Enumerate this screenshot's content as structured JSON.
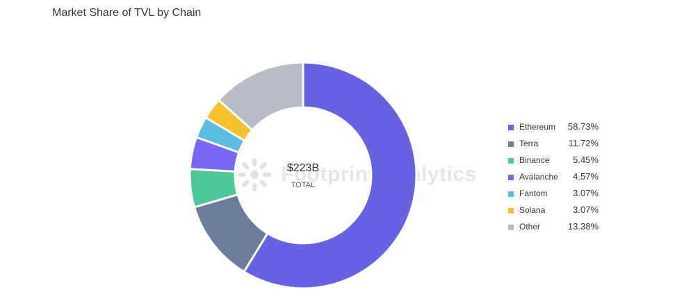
{
  "chart_data": {
    "type": "pie",
    "title": "Market Share of TVL by Chain",
    "center_value": "$223B",
    "center_label": "TOTAL",
    "watermark": "Footprint Analytics",
    "legend_position": "right",
    "categories": [
      "Ethereum",
      "Terra",
      "Binance",
      "Avalanche",
      "Fantom",
      "Solana",
      "Other"
    ],
    "values": [
      58.73,
      11.72,
      5.45,
      4.57,
      3.07,
      3.07,
      13.38
    ],
    "value_labels": [
      "58.73%",
      "11.72%",
      "5.45%",
      "4.57%",
      "3.07%",
      "3.07%",
      "13.38%"
    ],
    "colors": [
      "#6563e4",
      "#6b7c9d",
      "#4cc89a",
      "#7a66f5",
      "#5bbde0",
      "#f5c12c",
      "#b8bcc6"
    ]
  }
}
